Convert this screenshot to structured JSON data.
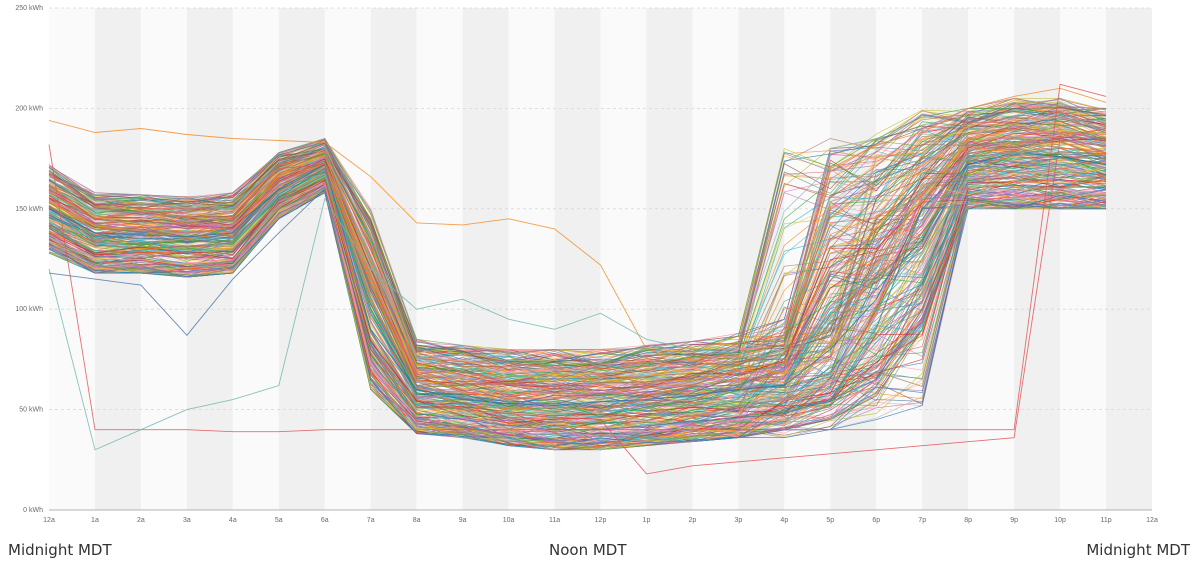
{
  "chart_data": {
    "type": "line",
    "title": "",
    "xlabel": "",
    "ylabel": "",
    "x_tick_labels": [
      "12a",
      "1a",
      "2a",
      "3a",
      "4a",
      "5a",
      "6a",
      "7a",
      "8a",
      "9a",
      "10a",
      "11a",
      "12p",
      "1p",
      "2p",
      "3p",
      "4p",
      "5p",
      "6p",
      "7p",
      "8p",
      "9p",
      "10p",
      "11p",
      "12a"
    ],
    "y_tick_labels": [
      "0 kWh",
      "50 kWh",
      "100 kWh",
      "150 kWh",
      "200 kWh",
      "250 kWh"
    ],
    "y_ticks": [
      0,
      50,
      100,
      150,
      200,
      250
    ],
    "ylim": [
      0,
      250
    ],
    "xlim": [
      0,
      24
    ],
    "grid": true,
    "legend": "none",
    "hours": [
      0,
      1,
      2,
      3,
      4,
      5,
      6,
      7,
      8,
      9,
      10,
      11,
      12,
      13,
      14,
      15,
      16,
      17,
      18,
      19,
      20,
      21,
      22,
      23
    ],
    "series_count": 300,
    "profile_envelope": {
      "low": [
        128,
        118,
        118,
        116,
        118,
        145,
        158,
        60,
        38,
        36,
        32,
        30,
        30,
        32,
        34,
        36,
        40,
        45,
        52,
        90,
        150,
        150,
        150,
        150
      ],
      "high": [
        172,
        158,
        157,
        156,
        158,
        178,
        185,
        150,
        85,
        82,
        80,
        80,
        80,
        82,
        84,
        88,
        95,
        180,
        185,
        190,
        200,
        205,
        205,
        200
      ],
      "mean": [
        148,
        137,
        136,
        134,
        137,
        160,
        170,
        95,
        55,
        52,
        50,
        49,
        50,
        52,
        55,
        58,
        65,
        115,
        135,
        160,
        175,
        178,
        178,
        174
      ]
    },
    "series_colors": [
      "#4e79a7",
      "#f28e2b",
      "#e15759",
      "#76b7b2",
      "#59a14f",
      "#edc948",
      "#b07aa1",
      "#ff9da7",
      "#9c755f",
      "#bab0ac",
      "#1f77b4",
      "#ff7f0e",
      "#2ca02c",
      "#d62728",
      "#9467bd",
      "#8c564b",
      "#e377c2",
      "#17becf",
      "#bcbd22"
    ],
    "highlight_series": [
      {
        "color": "#1f77b4",
        "values": [
          150,
          138,
          137,
          136,
          138,
          160,
          172,
          90,
          60,
          55,
          53,
          52,
          54,
          55,
          57,
          60,
          62,
          80,
          105,
          150,
          172,
          178,
          176,
          172
        ]
      },
      {
        "color": "#f28e2b",
        "values": [
          194,
          188,
          190,
          187,
          185,
          184,
          183,
          166,
          143,
          142,
          145,
          140,
          122,
          80,
          75,
          70,
          68,
          170,
          182,
          188,
          200,
          206,
          210,
          203
        ]
      },
      {
        "color": "#e15759",
        "values": [
          182,
          40,
          40,
          40,
          39,
          39,
          40,
          40,
          40,
          40,
          40,
          40,
          40,
          40,
          40,
          40,
          40,
          40,
          40,
          40,
          40,
          40,
          212,
          206
        ]
      },
      {
        "color": "#76b7b2",
        "values": [
          120,
          30,
          40,
          50,
          55,
          62,
          155,
          120,
          100,
          105,
          95,
          90,
          98,
          85,
          80,
          78,
          75,
          95,
          120,
          160,
          175,
          178,
          175,
          170
        ]
      },
      {
        "color": "#e15759",
        "values": [
          160,
          145,
          148,
          146,
          146,
          170,
          172,
          80,
          55,
          50,
          48,
          46,
          45,
          18,
          22,
          24,
          26,
          28,
          30,
          32,
          34,
          36,
          185,
          190
        ]
      },
      {
        "color": "#4e79a7",
        "values": [
          118,
          115,
          112,
          87,
          115,
          138,
          160,
          80,
          48,
          45,
          42,
          40,
          40,
          42,
          44,
          46,
          48,
          55,
          65,
          100,
          155,
          152,
          150,
          150
        ]
      }
    ],
    "annotations": [
      "Midnight MDT",
      "Noon MDT",
      "Midnight MDT"
    ]
  }
}
